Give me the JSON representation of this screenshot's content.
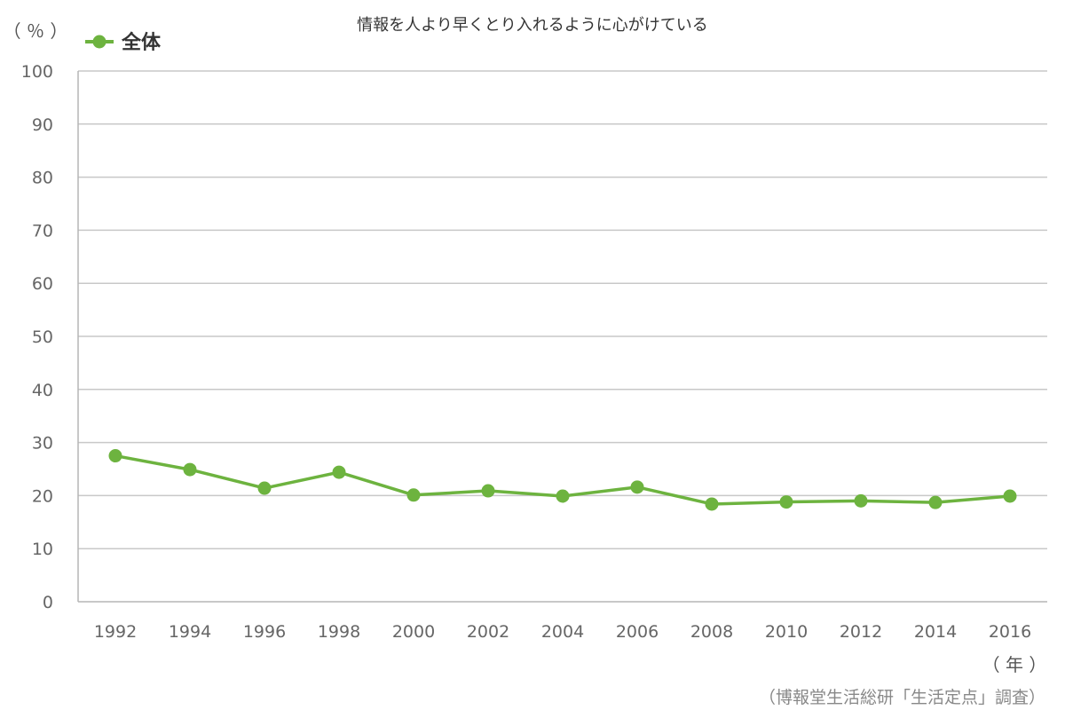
{
  "chart_data": {
    "type": "line",
    "title": "情報を人より早くとり入れるように心がけている",
    "ylabel": "（ ％ ）",
    "xlabel": "（ 年 ）",
    "source": "（博報堂生活総研「生活定点」調査）",
    "ylim": [
      0,
      100
    ],
    "yticks": [
      0,
      10,
      20,
      30,
      40,
      50,
      60,
      70,
      80,
      90,
      100
    ],
    "grid": true,
    "legend_position": "top-left",
    "categories": [
      "1992",
      "1994",
      "1996",
      "1998",
      "2000",
      "2002",
      "2004",
      "2006",
      "2008",
      "2010",
      "2012",
      "2014",
      "2016"
    ],
    "series": [
      {
        "name": "全体",
        "color": "#6db33f",
        "values": [
          27.5,
          24.9,
          21.4,
          24.4,
          20.1,
          20.9,
          19.9,
          21.6,
          18.4,
          18.8,
          19.0,
          18.7,
          19.9
        ]
      }
    ]
  }
}
